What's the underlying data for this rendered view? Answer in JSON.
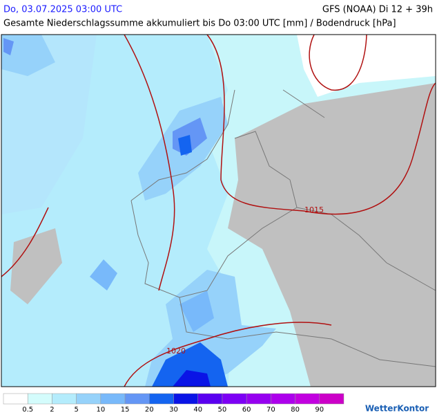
{
  "header": {
    "date": "Do, 03.07.2025 03:00 UTC",
    "model": "GFS (NOAA) Di 12 + 39h",
    "subtitle": "Gesamte Niederschlagssumme akkumuliert bis Do 03:00 UTC [mm] / Bodendruck [hPa]"
  },
  "isobars": [
    {
      "label": "1015"
    },
    {
      "label": "1020"
    }
  ],
  "legend": {
    "colors": [
      "#ffffff",
      "#d4fcfc",
      "#b4ecfc",
      "#96d2fa",
      "#78b9fa",
      "#6496f5",
      "#1464f0",
      "#0a14e6",
      "#5a00f0",
      "#7d00f5",
      "#9600f0",
      "#ad00ec",
      "#c200e0",
      "#cc00c8"
    ],
    "labels": [
      0.5,
      2,
      5,
      10,
      15,
      20,
      30,
      40,
      50,
      60,
      70,
      80,
      90
    ]
  },
  "logo": "WetterKontor"
}
